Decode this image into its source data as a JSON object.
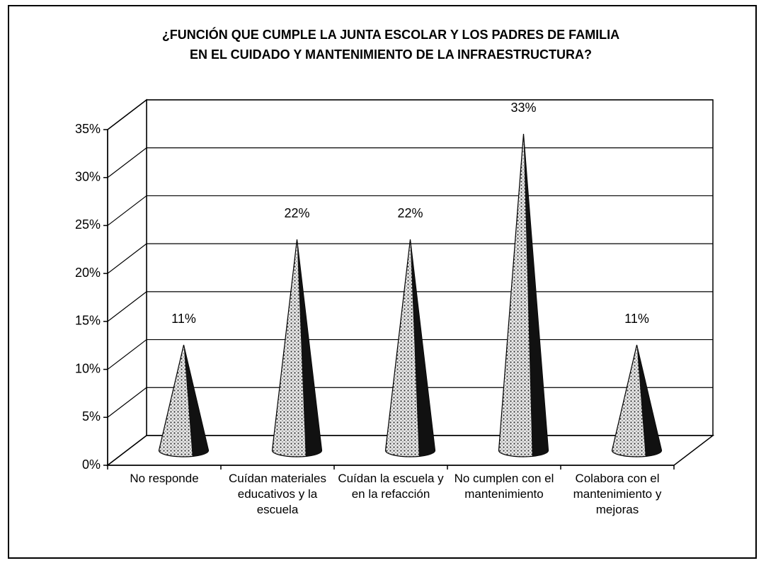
{
  "chart_data": {
    "type": "cone",
    "title": [
      "¿FUNCIÓN QUE CUMPLE LA JUNTA ESCOLAR Y LOS PADRES DE FAMILIA",
      "EN EL CUIDADO Y MANTENIMIENTO DE LA INFRAESTRUCTURA?"
    ],
    "categories": [
      "No responde",
      "Cuídan materiales educativos y la escuela",
      "Cuídan la escuela y en la refacción",
      "No cumplen con el mantenimiento",
      "Colabora con el mantenimiento y mejoras"
    ],
    "values": [
      11,
      22,
      22,
      33,
      11
    ],
    "value_labels": [
      "11%",
      "22%",
      "22%",
      "33%",
      "11%"
    ],
    "ylim": [
      0,
      35
    ],
    "yticks": [
      {
        "value": 0,
        "label": "0%"
      },
      {
        "value": 5,
        "label": "5%"
      },
      {
        "value": 10,
        "label": "10%"
      },
      {
        "value": 15,
        "label": "15%"
      },
      {
        "value": 20,
        "label": "20%"
      },
      {
        "value": 25,
        "label": "25%"
      },
      {
        "value": 30,
        "label": "30%"
      },
      {
        "value": 35,
        "label": "35%"
      }
    ],
    "grid": true
  }
}
